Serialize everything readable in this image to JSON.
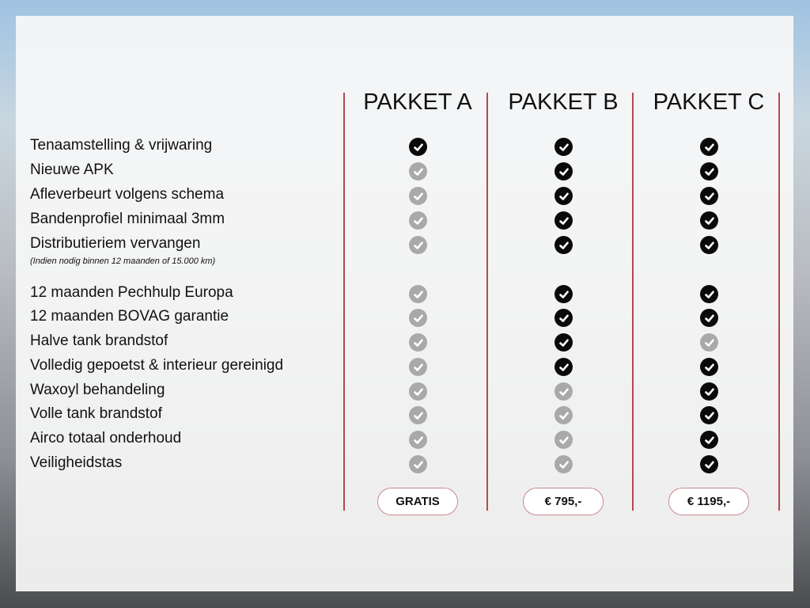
{
  "packages": [
    {
      "name": "PAKKET A",
      "price": "GRATIS"
    },
    {
      "name": "PAKKET B",
      "price": "€ 795,-"
    },
    {
      "name": "PAKKET C",
      "price": "€ 1195,-"
    }
  ],
  "features": [
    {
      "label": "Tenaamstelling & vrijwaring",
      "included": [
        true,
        true,
        true
      ]
    },
    {
      "label": "Nieuwe APK",
      "included": [
        false,
        true,
        true
      ]
    },
    {
      "label": "Afleverbeurt volgens schema",
      "included": [
        false,
        true,
        true
      ]
    },
    {
      "label": "Bandenprofiel minimaal 3mm",
      "included": [
        false,
        true,
        true
      ]
    },
    {
      "label": "Distributieriem vervangen",
      "included": [
        false,
        true,
        true
      ]
    },
    {
      "label": "12 maanden Pechhulp Europa",
      "included": [
        false,
        true,
        true
      ]
    },
    {
      "label": "12 maanden BOVAG garantie",
      "included": [
        false,
        true,
        true
      ]
    },
    {
      "label": "Halve tank brandstof",
      "included": [
        false,
        true,
        false
      ]
    },
    {
      "label": "Volledig gepoetst & interieur gereinigd",
      "included": [
        false,
        true,
        true
      ]
    },
    {
      "label": "Waxoyl behandeling",
      "included": [
        false,
        false,
        true
      ]
    },
    {
      "label": "Volle tank brandstof",
      "included": [
        false,
        false,
        true
      ]
    },
    {
      "label": "Airco totaal onderhoud",
      "included": [
        false,
        false,
        true
      ]
    },
    {
      "label": "Veiligheidstas",
      "included": [
        false,
        false,
        true
      ]
    }
  ],
  "distributie_note": "(Indien nodig binnen 12 maanden of 15.000 km)",
  "colors": {
    "accent": "#b5484d",
    "included": "#0a0a0a",
    "excluded": "#a9a9a9"
  }
}
